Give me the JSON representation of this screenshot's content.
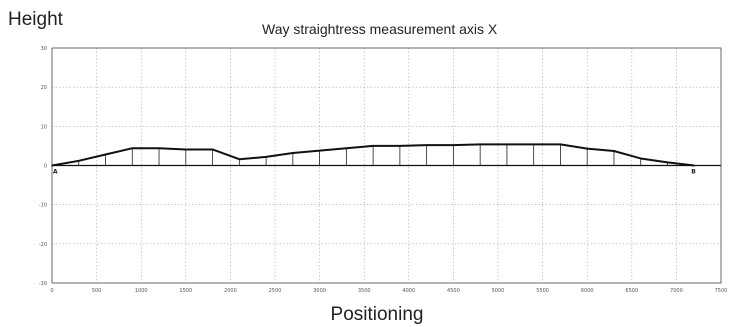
{
  "chart_data": {
    "type": "line",
    "title": "Way straightress measurement axis X",
    "xlabel": "Positioning",
    "ylabel": "Height",
    "xlim": [
      0,
      7500
    ],
    "ylim": [
      -30,
      30
    ],
    "x_ticks": [
      0,
      500,
      1000,
      1500,
      2000,
      2500,
      3000,
      3500,
      4000,
      4500,
      5000,
      5500,
      6000,
      6500,
      7000,
      7500
    ],
    "y_ticks": [
      30,
      20,
      10,
      0,
      -10,
      -20,
      -30
    ],
    "grid": true,
    "start_label": "A",
    "end_label": "B",
    "series": [
      {
        "x": [
          0,
          300,
          600,
          900,
          1200,
          1500,
          1800,
          2100,
          2400,
          2700,
          3000,
          3300,
          3600,
          3900,
          4200,
          4500,
          4800,
          5100,
          5400,
          5700,
          6000,
          6300,
          6600,
          6900,
          7200
        ],
        "y": [
          0,
          1.2,
          2.8,
          4.4,
          4.4,
          4.1,
          4.1,
          1.6,
          2.2,
          3.2,
          3.8,
          4.4,
          5.0,
          5.0,
          5.2,
          5.2,
          5.4,
          5.4,
          5.4,
          5.4,
          4.3,
          3.7,
          1.8,
          0.8,
          0.0
        ]
      }
    ]
  }
}
